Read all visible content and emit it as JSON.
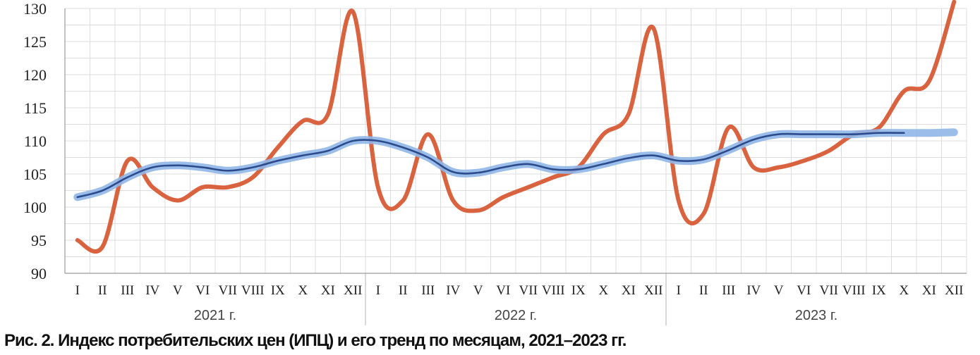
{
  "chart_data": {
    "type": "line",
    "ylim": [
      90,
      130
    ],
    "yticks": [
      90,
      95,
      100,
      105,
      110,
      115,
      120,
      125,
      130
    ],
    "grid": true,
    "month_labels": [
      "I",
      "II",
      "III",
      "IV",
      "V",
      "VI",
      "VII",
      "VIII",
      "IX",
      "X",
      "XI",
      "XII"
    ],
    "years": [
      "2021 г.",
      "2022 г.",
      "2023 г."
    ],
    "series": [
      {
        "color": "#d9623f",
        "values": [
          95,
          94,
          107,
          103,
          101,
          103,
          103,
          104.5,
          109,
          113,
          114,
          129.5,
          103,
          101,
          111,
          101,
          99.5,
          101.5,
          103,
          104.5,
          106,
          111,
          114,
          127,
          101,
          99,
          112,
          106,
          106,
          107,
          108.5,
          111,
          112,
          117.5,
          119,
          131
        ]
      },
      {
        "color": "#2b4b8c",
        "halo": "#8fb6e8",
        "values": [
          101.5,
          102.5,
          104.5,
          106,
          106.3,
          106,
          105.5,
          106,
          107,
          107.8,
          108.5,
          110,
          110,
          109,
          107.5,
          105.3,
          105.2,
          106,
          106.5,
          105.7,
          105.7,
          106.5,
          107.4,
          107.8,
          107,
          107.2,
          108.6,
          110.2,
          111,
          111,
          111,
          111,
          111.2,
          111.2,
          111.2,
          111.3
        ]
      }
    ]
  },
  "caption": "Рис. 2. Индекс потребительских цен (ИПЦ) и его тренд по месяцам, 2021–2023 гг."
}
